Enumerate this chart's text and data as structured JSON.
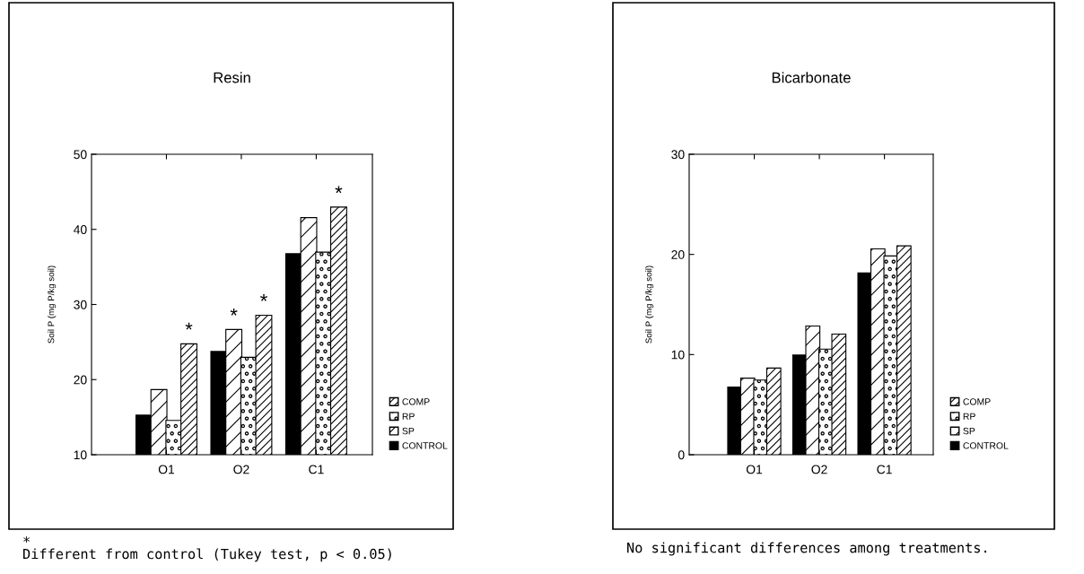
{
  "chart_data": [
    {
      "type": "bar",
      "title": "Resin",
      "ylabel": "Soil P (mg P/kg soil)",
      "categories": [
        "O1",
        "O2",
        "C1"
      ],
      "series": [
        {
          "name": "CONTROL",
          "color": "#000000",
          "values": [
            15.2,
            23.7,
            36.7
          ]
        },
        {
          "name": "SP",
          "color": "#ffffff",
          "values": [
            18.6,
            26.6,
            41.5
          ],
          "value_labels": [
            null,
            "*",
            null
          ]
        },
        {
          "name": "RP",
          "color": "#ffffff",
          "values": [
            14.5,
            22.9,
            36.9
          ]
        },
        {
          "name": "COMP",
          "color": "#ffffff",
          "values": [
            24.7,
            28.5,
            42.9
          ],
          "value_labels": [
            "*",
            "*",
            "*"
          ]
        }
      ],
      "ylim": [
        10,
        50
      ],
      "yticks": [
        10,
        20,
        30,
        40,
        50
      ],
      "grid": false,
      "legend": "bottom right",
      "annotations": [
        "*\nDifferent from control (Tukey test, p < 0.05)"
      ]
    },
    {
      "type": "bar",
      "title": "Bicarbonate",
      "ylabel": "Soil P (mg P/kg soil)",
      "categories": [
        "O1",
        "O2",
        "C1"
      ],
      "series": [
        {
          "name": "CONTROL",
          "color": "#000000",
          "values": [
            6.7,
            9.9,
            18.1
          ]
        },
        {
          "name": "SP",
          "color": "#ffffff",
          "values": [
            7.6,
            12.8,
            20.5
          ]
        },
        {
          "name": "RP",
          "color": "#ffffff",
          "values": [
            7.4,
            10.5,
            19.8
          ]
        },
        {
          "name": "COMP",
          "color": "#ffffff",
          "values": [
            8.6,
            12.0,
            20.8
          ]
        }
      ],
      "ylim": [
        0,
        30
      ],
      "yticks": [
        0,
        10,
        20,
        30
      ],
      "grid": false,
      "legend": "bottom right",
      "annotations": [
        "No significant differences among treatments."
      ]
    }
  ]
}
